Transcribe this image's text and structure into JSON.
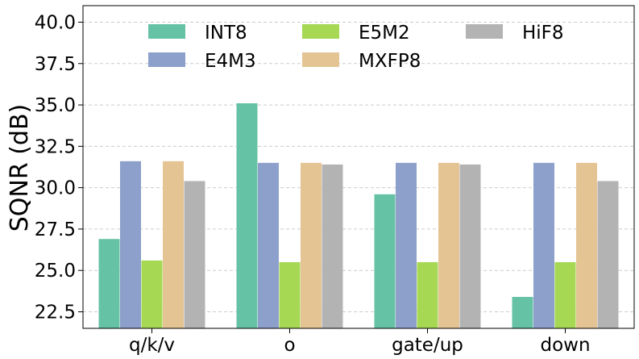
{
  "chart_data": {
    "type": "bar",
    "title": "",
    "xlabel": "",
    "ylabel": "SQNR (dB)",
    "categories": [
      "q/k/v",
      "o",
      "gate/up",
      "down"
    ],
    "series": [
      {
        "name": "INT8",
        "color": "#66c2a5",
        "values": [
          26.9,
          35.1,
          29.6,
          23.4
        ]
      },
      {
        "name": "E4M3",
        "color": "#8da0cb",
        "values": [
          31.6,
          31.5,
          31.5,
          31.5
        ]
      },
      {
        "name": "E5M2",
        "color": "#a6d854",
        "values": [
          25.6,
          25.5,
          25.5,
          25.5
        ]
      },
      {
        "name": "MXFP8",
        "color": "#e5c494",
        "values": [
          31.6,
          31.5,
          31.5,
          31.5
        ]
      },
      {
        "name": "HiF8",
        "color": "#b3b3b3",
        "values": [
          30.4,
          31.4,
          31.4,
          30.4
        ]
      }
    ],
    "ylim": [
      21.5,
      41.0
    ],
    "yticks": [
      "22.5",
      "25.0",
      "27.5",
      "30.0",
      "32.5",
      "35.0",
      "37.5",
      "40.0"
    ],
    "grid": "y",
    "legend_position": "top"
  }
}
